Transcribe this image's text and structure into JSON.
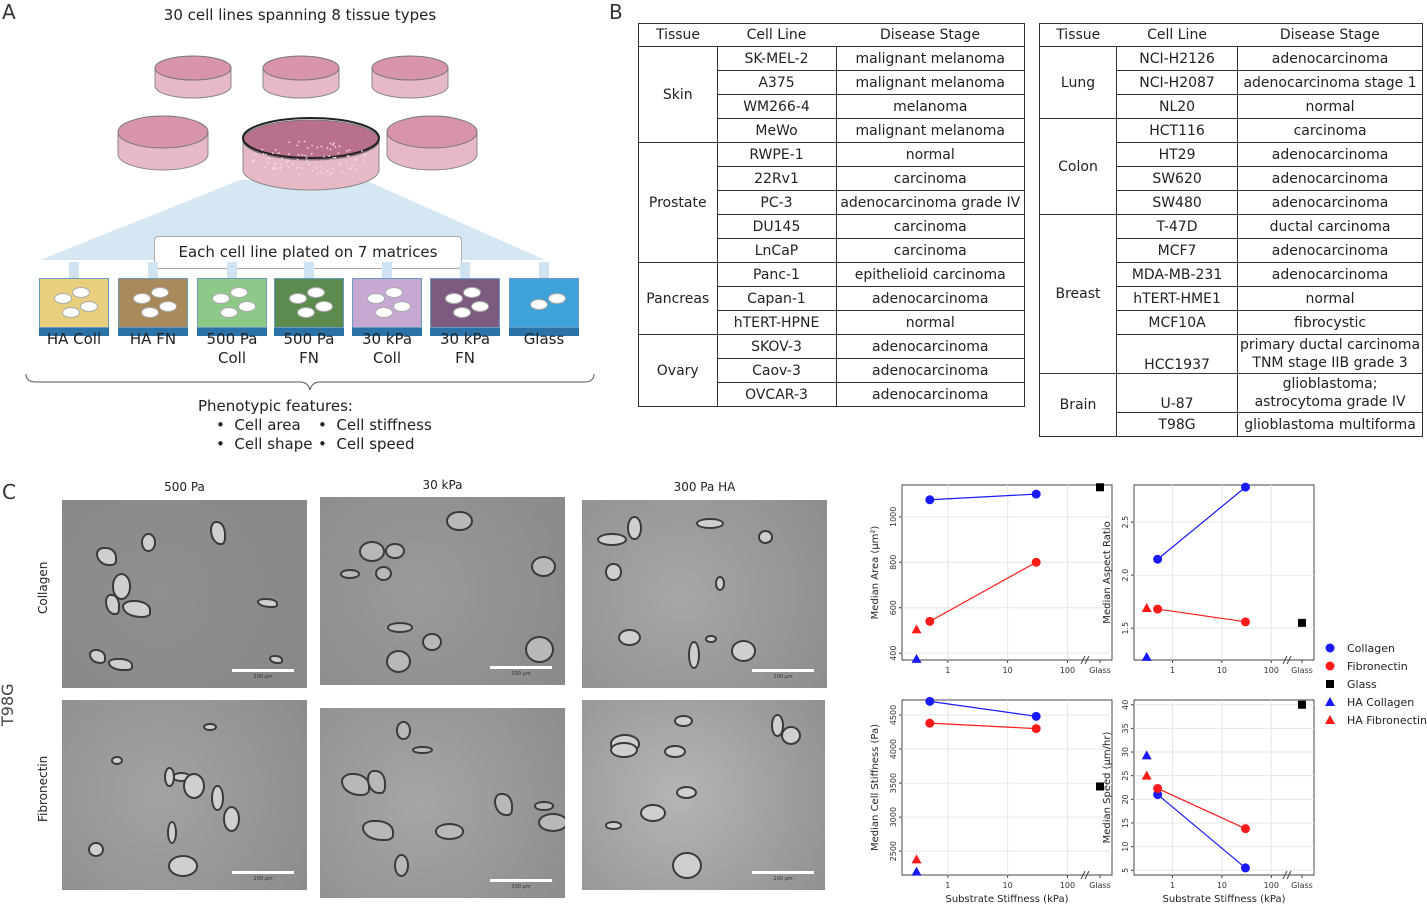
{
  "panel_a": {
    "label": "A",
    "title": "30 cell lines spanning 8 tissue types",
    "plating_text": "Each cell line plated on 7 matrices",
    "matrices": [
      {
        "line1": "HA Coll",
        "line2": "",
        "color": "#e8cf7e"
      },
      {
        "line1": "HA FN",
        "line2": "",
        "color": "#a8895a"
      },
      {
        "line1": "500 Pa",
        "line2": "Coll",
        "color": "#8fc98a"
      },
      {
        "line1": "500 Pa",
        "line2": "FN",
        "color": "#5d8a4e"
      },
      {
        "line1": "30 kPa",
        "line2": "Coll",
        "color": "#c7a8d3"
      },
      {
        "line1": "30 kPa",
        "line2": "FN",
        "color": "#7d5a7f"
      },
      {
        "line1": "Glass",
        "line2": "",
        "color": "#3fa2d8"
      }
    ],
    "features_title": "Phenotypic features:",
    "features": [
      "Cell area",
      "Cell stiffness",
      "Cell shape",
      "Cell speed"
    ]
  },
  "panel_b": {
    "label": "B",
    "headers": [
      "Tissue",
      "Cell Line",
      "Disease Stage"
    ],
    "left": [
      {
        "tissue": "Skin",
        "rows": [
          [
            "SK-MEL-2",
            "malignant melanoma"
          ],
          [
            "A375",
            "malignant melanoma"
          ],
          [
            "WM266-4",
            "melanoma"
          ],
          [
            "MeWo",
            "malignant melanoma"
          ]
        ]
      },
      {
        "tissue": "Prostate",
        "rows": [
          [
            "RWPE-1",
            "normal"
          ],
          [
            "22Rv1",
            "carcinoma"
          ],
          [
            "PC-3",
            "adenocarcinoma grade IV"
          ],
          [
            "DU145",
            "carcinoma"
          ],
          [
            "LnCaP",
            "carcinoma"
          ]
        ]
      },
      {
        "tissue": "Pancreas",
        "rows": [
          [
            "Panc-1",
            "epithelioid carcinoma"
          ],
          [
            "Capan-1",
            "adenocarcinoma"
          ],
          [
            "hTERT-HPNE",
            "normal"
          ]
        ]
      },
      {
        "tissue": "Ovary",
        "rows": [
          [
            "SKOV-3",
            "adenocarcinoma"
          ],
          [
            "Caov-3",
            "adenocarcinoma"
          ],
          [
            "OVCAR-3",
            "adenocarcinoma"
          ]
        ]
      }
    ],
    "right": [
      {
        "tissue": "Lung",
        "rows": [
          [
            "NCI-H2126",
            "adenocarcinoma"
          ],
          [
            "NCI-H2087",
            "adenocarcinoma stage 1"
          ],
          [
            "NL20",
            "normal"
          ]
        ]
      },
      {
        "tissue": "Colon",
        "rows": [
          [
            "HCT116",
            "carcinoma"
          ],
          [
            "HT29",
            "adenocarcinoma"
          ],
          [
            "SW620",
            "adenocarcinoma"
          ],
          [
            "SW480",
            "adenocarcinoma"
          ]
        ]
      },
      {
        "tissue": "Breast",
        "rows": [
          [
            "T-47D",
            "ductal carcinoma"
          ],
          [
            "MCF7",
            "adenocarcinoma"
          ],
          [
            "MDA-MB-231",
            "adenocarcinoma"
          ],
          [
            "hTERT-HME1",
            "normal"
          ],
          [
            "MCF10A",
            "fibrocystic"
          ],
          [
            "HCC1937",
            "primary ductal carcinoma TNM stage IIB grade 3"
          ]
        ]
      },
      {
        "tissue": "Brain",
        "rows": [
          [
            "U-87",
            "glioblastoma; astrocytoma grade IV"
          ],
          [
            "T98G",
            "glioblastoma multiforma"
          ]
        ]
      }
    ]
  },
  "panel_c": {
    "label": "C",
    "cell_line": "T98G",
    "columns": [
      "500 Pa",
      "30 kPa",
      "300 Pa HA"
    ],
    "rows": [
      "Collagen",
      "Fibronectin"
    ],
    "scale_label": "100 µm"
  },
  "legend": [
    {
      "name": "Collagen",
      "color": "#1a1aff",
      "shape": "circle"
    },
    {
      "name": "Fibronectin",
      "color": "#ff1a1a",
      "shape": "circle"
    },
    {
      "name": "Glass",
      "color": "#000000",
      "shape": "square"
    },
    {
      "name": "HA Collagen",
      "color": "#1a1aff",
      "shape": "triangle"
    },
    {
      "name": "HA Fibronectin",
      "color": "#ff1a1a",
      "shape": "triangle"
    }
  ],
  "x_axis": {
    "xlabel": "Substrate Stiffness (kPa)",
    "ticks": [
      "1",
      "10",
      "100",
      "Glass"
    ]
  },
  "chart_data": [
    {
      "type": "scatter",
      "xscale": "log",
      "ylabel": "Median Area (µm²)",
      "ylim": [
        370,
        1140
      ],
      "yticks": [
        400,
        600,
        800,
        1000
      ],
      "series": [
        {
          "name": "Collagen",
          "x": [
            0.5,
            30
          ],
          "y": [
            1075,
            1100
          ]
        },
        {
          "name": "Fibronectin",
          "x": [
            0.5,
            30
          ],
          "y": [
            540,
            800
          ]
        },
        {
          "name": "Glass",
          "x": [
            "Glass"
          ],
          "y": [
            1130
          ]
        },
        {
          "name": "HA Collagen",
          "x": [
            0.3
          ],
          "y": [
            375
          ]
        },
        {
          "name": "HA Fibronectin",
          "x": [
            0.3
          ],
          "y": [
            505
          ]
        }
      ]
    },
    {
      "type": "scatter",
      "xscale": "log",
      "ylabel": "Median Aspect Ratio",
      "ylim": [
        1.2,
        2.85
      ],
      "yticks": [
        1.5,
        2.0,
        2.5
      ],
      "series": [
        {
          "name": "Collagen",
          "x": [
            0.5,
            30
          ],
          "y": [
            2.15,
            2.83
          ]
        },
        {
          "name": "Fibronectin",
          "x": [
            0.5,
            30
          ],
          "y": [
            1.68,
            1.56
          ]
        },
        {
          "name": "Glass",
          "x": [
            "Glass"
          ],
          "y": [
            1.55
          ]
        },
        {
          "name": "HA Collagen",
          "x": [
            0.3
          ],
          "y": [
            1.23
          ]
        },
        {
          "name": "HA Fibronectin",
          "x": [
            0.3
          ],
          "y": [
            1.69
          ]
        }
      ]
    },
    {
      "type": "scatter",
      "xscale": "log",
      "ylabel": "Median Cell Stiffness (Pa)",
      "ylim": [
        2150,
        4720
      ],
      "yticks": [
        2500,
        3000,
        3500,
        4000,
        4500
      ],
      "series": [
        {
          "name": "Collagen",
          "x": [
            0.5,
            30
          ],
          "y": [
            4700,
            4480
          ]
        },
        {
          "name": "Fibronectin",
          "x": [
            0.5,
            30
          ],
          "y": [
            4380,
            4300
          ]
        },
        {
          "name": "Glass",
          "x": [
            "Glass"
          ],
          "y": [
            3450
          ]
        },
        {
          "name": "HA Collagen",
          "x": [
            0.3
          ],
          "y": [
            2200
          ]
        },
        {
          "name": "HA Fibronectin",
          "x": [
            0.3
          ],
          "y": [
            2380
          ]
        }
      ]
    },
    {
      "type": "scatter",
      "xscale": "log",
      "ylabel": "Median Speed (µm/hr)",
      "ylim": [
        4,
        41
      ],
      "yticks": [
        5,
        10,
        15,
        20,
        25,
        30,
        35,
        40
      ],
      "series": [
        {
          "name": "Collagen",
          "x": [
            0.5,
            30
          ],
          "y": [
            21,
            5.5
          ]
        },
        {
          "name": "Fibronectin",
          "x": [
            0.5,
            30
          ],
          "y": [
            22.3,
            13.8
          ]
        },
        {
          "name": "Glass",
          "x": [
            "Glass"
          ],
          "y": [
            40
          ]
        },
        {
          "name": "HA Collagen",
          "x": [
            0.3
          ],
          "y": [
            29.3
          ]
        },
        {
          "name": "HA Fibronectin",
          "x": [
            0.3
          ],
          "y": [
            25
          ]
        }
      ]
    }
  ]
}
